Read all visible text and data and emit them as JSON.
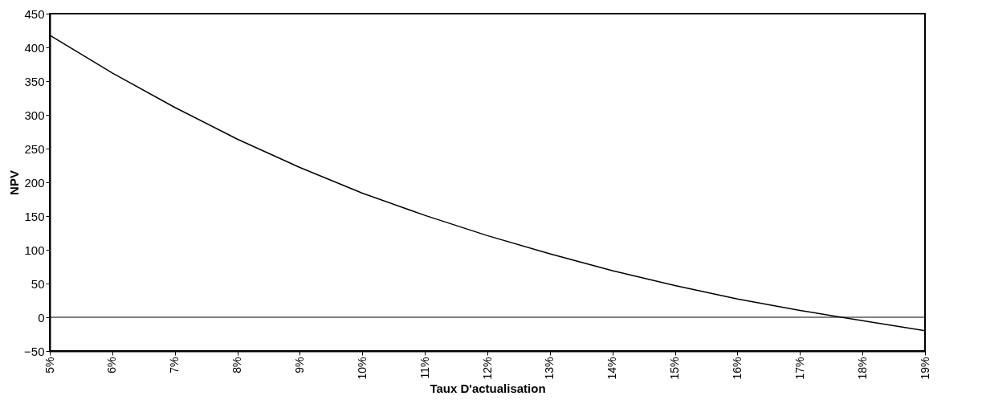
{
  "chart_data": {
    "type": "line",
    "xlabel": "Taux D'actualisation",
    "ylabel": "NPV",
    "categories": [
      "5%",
      "6%",
      "7%",
      "8%",
      "9%",
      "10%",
      "11%",
      "12%",
      "13%",
      "14%",
      "15%",
      "16%",
      "17%",
      "18%",
      "19%"
    ],
    "series": [
      {
        "color": "#000000",
        "values": [
          418,
          362,
          311,
          264,
          222,
          184,
          151,
          121,
          94,
          69,
          47,
          27,
          10,
          -5,
          -20
        ]
      }
    ],
    "ylim": [
      -50,
      450
    ],
    "yticks": [
      -50,
      0,
      50,
      100,
      150,
      200,
      250,
      300,
      350,
      400,
      450
    ],
    "ref_lines": [
      {
        "axis": "y",
        "value": 0,
        "color": "#000000"
      }
    ],
    "grid": false,
    "legend": false,
    "marker": "none",
    "line_style": "solid"
  }
}
